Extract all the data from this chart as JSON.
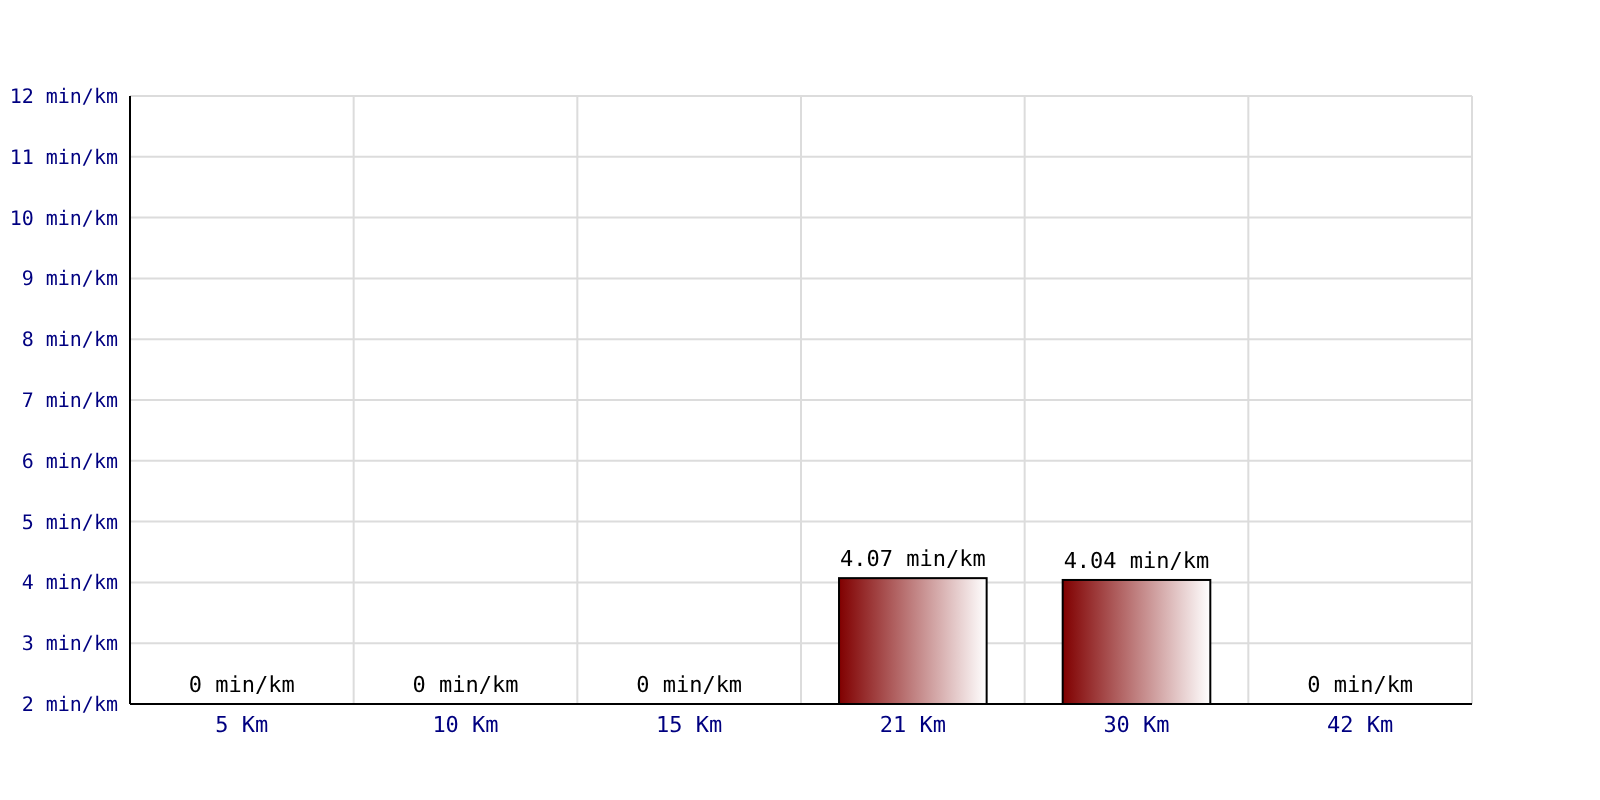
{
  "chart_data": {
    "type": "bar",
    "categories": [
      "5 Km",
      "10 Km",
      "15 Km",
      "21 Km",
      "30 Km",
      "42 Km"
    ],
    "values": [
      null,
      null,
      null,
      4.07,
      4.04,
      null
    ],
    "value_labels": [
      "0 min/km",
      "0 min/km",
      "0 min/km",
      "4.07 min/km",
      "4.04 min/km",
      "0 min/km"
    ],
    "color": "#800000",
    "ylim": [
      2,
      12
    ],
    "yticks": [
      {
        "value": 2,
        "label": "2 min/km"
      },
      {
        "value": 3,
        "label": "3 min/km"
      },
      {
        "value": 4,
        "label": "4 min/km"
      },
      {
        "value": 5,
        "label": "5 min/km"
      },
      {
        "value": 6,
        "label": "6 min/km"
      },
      {
        "value": 7,
        "label": "7 min/km"
      },
      {
        "value": 8,
        "label": "8 min/km"
      },
      {
        "value": 9,
        "label": "9 min/km"
      },
      {
        "value": 10,
        "label": "10 min/km"
      },
      {
        "value": 11,
        "label": "11 min/km"
      },
      {
        "value": 12,
        "label": "12 min/km"
      }
    ],
    "grid": true
  }
}
